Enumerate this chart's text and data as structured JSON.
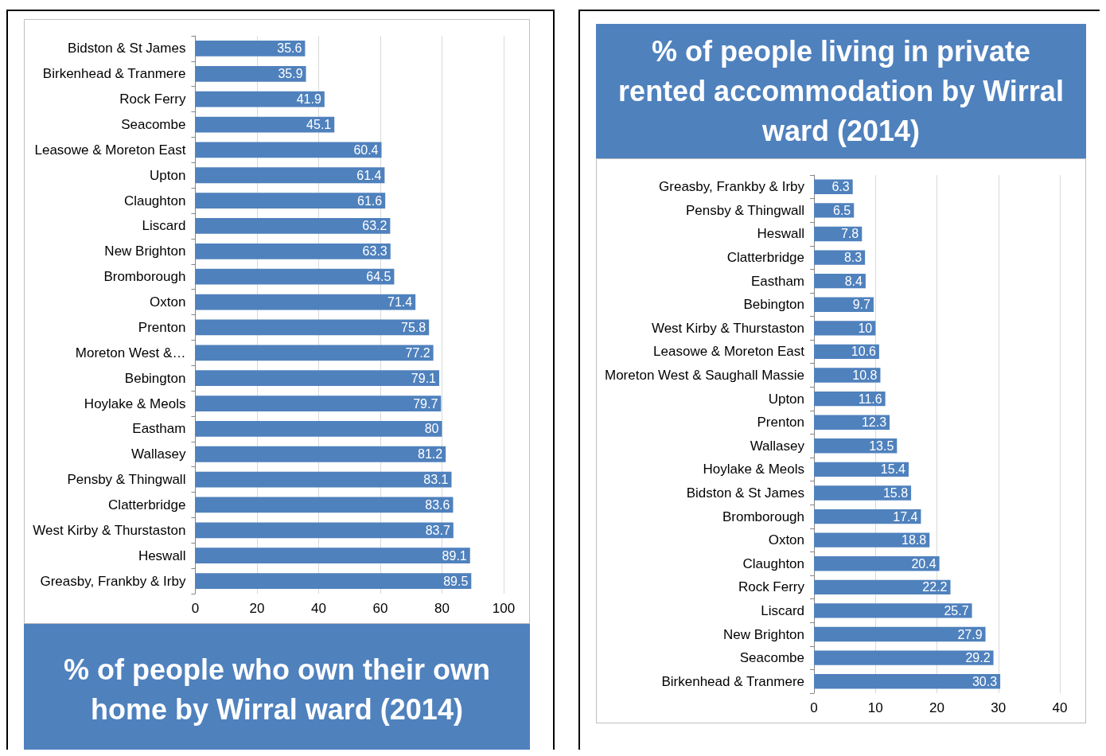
{
  "chart_data": [
    {
      "type": "bar",
      "orientation": "horizontal",
      "title": "% of people who own their own home by Wirral ward (2014)",
      "categories": [
        "Bidston & St James",
        "Birkenhead & Tranmere",
        "Rock Ferry",
        "Seacombe",
        "Leasowe & Moreton East",
        "Upton",
        "Claughton",
        "Liscard",
        "New Brighton",
        "Bromborough",
        "Oxton",
        "Prenton",
        "Moreton West &…",
        "Bebington",
        "Hoylake & Meols",
        "Eastham",
        "Wallasey",
        "Pensby & Thingwall",
        "Clatterbridge",
        "West Kirby & Thurstaston",
        "Heswall",
        "Greasby, Frankby & Irby"
      ],
      "values": [
        35.6,
        35.9,
        41.9,
        45.1,
        60.4,
        61.4,
        61.6,
        63.2,
        63.3,
        64.5,
        71.4,
        75.8,
        77.2,
        79.1,
        79.7,
        80,
        81.2,
        83.1,
        83.6,
        83.7,
        89.1,
        89.5
      ],
      "color": "#4f81bd",
      "xlim": [
        0,
        100
      ],
      "xticks": [
        0,
        20,
        40,
        60,
        80,
        100
      ],
      "grid": "x",
      "data_labels": true
    },
    {
      "type": "bar",
      "orientation": "horizontal",
      "title": "% of people living in private rented accommodation by Wirral ward (2014)",
      "categories": [
        "Greasby, Frankby & Irby",
        "Pensby & Thingwall",
        "Heswall",
        "Clatterbridge",
        "Eastham",
        "Bebington",
        "West Kirby & Thurstaston",
        "Leasowe & Moreton East",
        "Moreton West & Saughall Massie",
        "Upton",
        "Prenton",
        "Wallasey",
        "Hoylake & Meols",
        "Bidston & St James",
        "Bromborough",
        "Oxton",
        "Claughton",
        "Rock Ferry",
        "Liscard",
        "New Brighton",
        "Seacombe",
        "Birkenhead & Tranmere"
      ],
      "values": [
        6.3,
        6.5,
        7.8,
        8.3,
        8.4,
        9.7,
        10,
        10.6,
        10.8,
        11.6,
        12.3,
        13.5,
        15.4,
        15.8,
        17.4,
        18.8,
        20.4,
        22.2,
        25.7,
        27.9,
        29.2,
        30.3
      ],
      "color": "#4f81bd",
      "xlim": [
        0,
        40
      ],
      "xticks": [
        0,
        10,
        20,
        30,
        40
      ],
      "grid": "x",
      "data_labels": true
    }
  ]
}
